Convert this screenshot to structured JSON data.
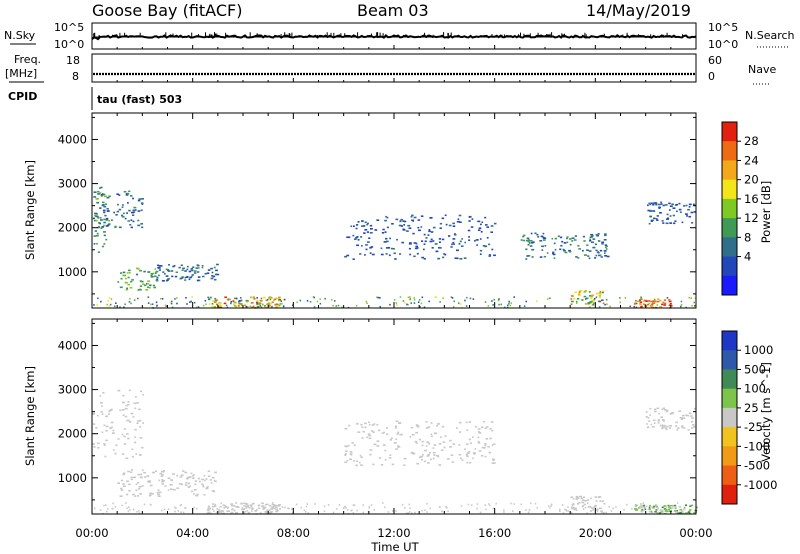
{
  "header": {
    "station": "Goose Bay (fitACF)",
    "beam": "Beam 03",
    "date": "14/May/2019"
  },
  "aux": {
    "nsky_label": "N.Sky",
    "nsearch_label": "N.Search",
    "nsky_ticks": [
      "10^5",
      "10^0"
    ],
    "nsearch_ticks": [
      "10^5",
      "10^0"
    ],
    "freq_label_1": "Freq.",
    "freq_label_2": "[MHz]",
    "freq_ticks": [
      "18",
      "8"
    ],
    "nave_label": "Nave",
    "nave_ticks": [
      "60",
      "0"
    ],
    "cpid_label": "CPID",
    "cpid_value": "tau (fast) 503"
  },
  "axes": {
    "x_ticks": [
      "00:00",
      "04:00",
      "08:00",
      "12:00",
      "16:00",
      "20:00",
      "00:00"
    ],
    "x_label": "Time UT",
    "y_label": "Slant Range [km]",
    "y_ticks": [
      "1000",
      "2000",
      "3000",
      "4000"
    ]
  },
  "colorbars": {
    "power": {
      "label": "Power [dB]",
      "ticks": [
        "4",
        "8",
        "12",
        "16",
        "20",
        "24",
        "28"
      ],
      "colors": [
        "#1a1aff",
        "#2346b8",
        "#2f6f8c",
        "#3f9a56",
        "#7ec924",
        "#f2e51a",
        "#f2a81a",
        "#ef6a14",
        "#e22010"
      ]
    },
    "velocity": {
      "label": "Velocity [m s^-1]",
      "ticks": [
        "1000",
        "500",
        "100",
        "25",
        "-25",
        "-100",
        "-500",
        "-1000"
      ],
      "colors": [
        "#2036c4",
        "#2e58a8",
        "#3f8a56",
        "#7cc44a",
        "#c8c8c8",
        "#f0c31f",
        "#f09a18",
        "#ec5f14",
        "#e0200e"
      ]
    }
  },
  "chart_data": [
    {
      "type": "heatmap",
      "title": "Power [dB]",
      "xlabel": "Time UT",
      "ylabel": "Slant Range [km]",
      "xlim": [
        "00:00",
        "24:00"
      ],
      "ylim": [
        180,
        4600
      ],
      "colorbar_range": [
        0,
        30
      ],
      "grid": false,
      "regions": [
        {
          "t_start": "00:00",
          "t_end": "00:40",
          "range_km": [
            1450,
            3000
          ],
          "power_db": [
            6,
            16
          ]
        },
        {
          "t_start": "00:00",
          "t_end": "02:00",
          "range_km": [
            2000,
            2850
          ],
          "power_db": [
            4,
            12
          ]
        },
        {
          "t_start": "01:00",
          "t_end": "02:30",
          "range_km": [
            600,
            1100
          ],
          "power_db": [
            8,
            16
          ]
        },
        {
          "t_start": "02:30",
          "t_end": "05:00",
          "range_km": [
            800,
            1200
          ],
          "power_db": [
            4,
            12
          ]
        },
        {
          "t_start": "04:30",
          "t_end": "07:30",
          "range_km": [
            200,
            450
          ],
          "power_db": [
            10,
            28
          ]
        },
        {
          "t_start": "10:00",
          "t_end": "16:00",
          "range_km": [
            1300,
            2300
          ],
          "power_db": [
            4,
            8
          ]
        },
        {
          "t_start": "17:00",
          "t_end": "20:30",
          "range_km": [
            1300,
            1900
          ],
          "power_db": [
            4,
            12
          ]
        },
        {
          "t_start": "19:00",
          "t_end": "20:20",
          "range_km": [
            250,
            600
          ],
          "power_db": [
            8,
            26
          ]
        },
        {
          "t_start": "21:30",
          "t_end": "23:00",
          "range_km": [
            200,
            400
          ],
          "power_db": [
            20,
            30
          ]
        },
        {
          "t_start": "22:00",
          "t_end": "24:00",
          "range_km": [
            2100,
            2600
          ],
          "power_db": [
            4,
            10
          ]
        }
      ]
    },
    {
      "type": "heatmap",
      "title": "Velocity [m s^-1]",
      "xlabel": "Time UT",
      "ylabel": "Slant Range [km]",
      "xlim": [
        "00:00",
        "24:00"
      ],
      "ylim": [
        180,
        4600
      ],
      "colorbar_range": [
        -1000,
        1000
      ],
      "grid": false,
      "regions": [
        {
          "t_start": "00:00",
          "t_end": "02:00",
          "range_km": [
            1450,
            3000
          ],
          "velocity_ms": [
            -25,
            25
          ]
        },
        {
          "t_start": "01:00",
          "t_end": "05:00",
          "range_km": [
            600,
            1200
          ],
          "velocity_ms": [
            -100,
            100
          ]
        },
        {
          "t_start": "04:30",
          "t_end": "07:30",
          "range_km": [
            200,
            450
          ],
          "velocity_ms": [
            -100,
            100
          ]
        },
        {
          "t_start": "10:00",
          "t_end": "16:00",
          "range_km": [
            1300,
            2300
          ],
          "velocity_ms": [
            -25,
            25
          ]
        },
        {
          "t_start": "19:00",
          "t_end": "20:20",
          "range_km": [
            250,
            600
          ],
          "velocity_ms": [
            -100,
            -25
          ]
        },
        {
          "t_start": "21:30",
          "t_end": "24:00",
          "range_km": [
            200,
            400
          ],
          "velocity_ms": [
            25,
            500
          ]
        },
        {
          "t_start": "22:00",
          "t_end": "24:00",
          "range_km": [
            2100,
            2600
          ],
          "velocity_ms": [
            -25,
            25
          ]
        }
      ]
    }
  ]
}
